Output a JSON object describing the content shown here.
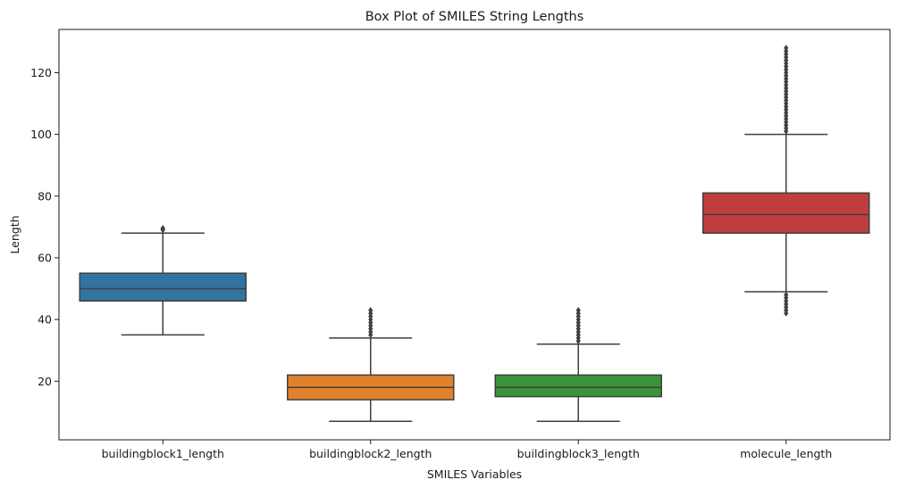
{
  "chart_data": {
    "type": "box",
    "title": "Box Plot of SMILES String Lengths",
    "xlabel": "SMILES Variables",
    "ylabel": "Length",
    "ylim": [
      1,
      134
    ],
    "yticks": [
      20,
      40,
      60,
      80,
      100,
      120
    ],
    "grid": false,
    "legend": "none",
    "categories": [
      "buildingblock1_length",
      "buildingblock2_length",
      "buildingblock3_length",
      "molecule_length"
    ],
    "boxes": [
      {
        "category": "buildingblock1_length",
        "color": "#3274a1",
        "whisker_low": 35,
        "q1": 46,
        "median": 50,
        "q3": 55,
        "whisker_high": 68,
        "outliers": [
          69,
          69.3,
          69.6
        ]
      },
      {
        "category": "buildingblock2_length",
        "color": "#e1812c",
        "whisker_low": 7,
        "q1": 14,
        "median": 18,
        "q3": 22,
        "whisker_high": 34,
        "outliers": [
          35,
          36,
          37,
          38,
          39,
          40,
          41,
          42,
          43
        ]
      },
      {
        "category": "buildingblock3_length",
        "color": "#3a923a",
        "whisker_low": 7,
        "q1": 15,
        "median": 18,
        "q3": 22,
        "whisker_high": 32,
        "outliers": [
          33,
          34,
          35,
          36,
          37,
          38,
          39,
          40,
          41,
          42,
          43
        ]
      },
      {
        "category": "molecule_length",
        "color": "#c03d3e",
        "whisker_low": 49,
        "q1": 68,
        "median": 74,
        "q3": 81,
        "whisker_high": 100,
        "outliers": [
          42,
          43,
          44,
          45,
          46,
          47,
          48,
          101,
          102,
          103,
          104,
          105,
          106,
          107,
          108,
          109,
          110,
          111,
          112,
          113,
          114,
          115,
          116,
          117,
          118,
          119,
          120,
          121,
          122,
          123,
          124,
          125,
          126,
          127,
          128
        ]
      }
    ]
  }
}
